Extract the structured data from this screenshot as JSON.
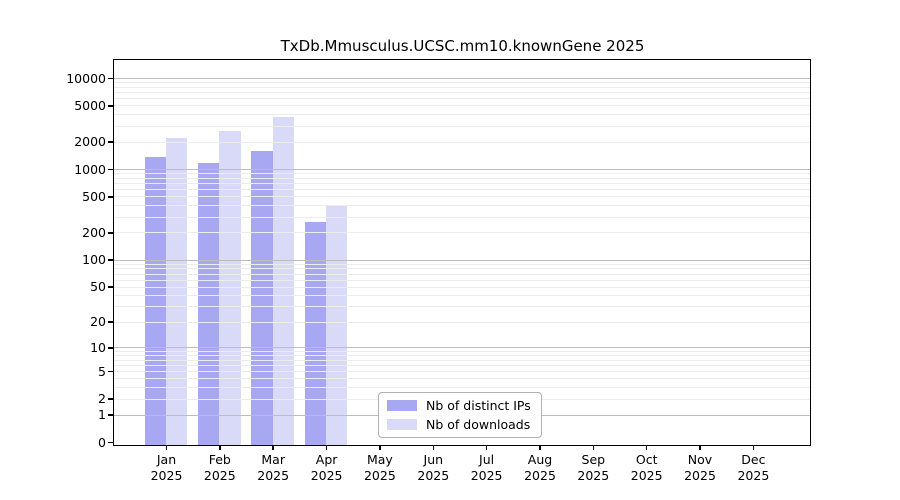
{
  "chart_data": {
    "type": "bar",
    "title": "TxDb.Mmusculus.UCSC.mm10.knownGene 2025",
    "categories": [
      "Jan 2025",
      "Feb 2025",
      "Mar 2025",
      "Apr 2025",
      "May 2025",
      "Jun 2025",
      "Jul 2025",
      "Aug 2025",
      "Sep 2025",
      "Oct 2025",
      "Nov 2025",
      "Dec 2025"
    ],
    "series": [
      {
        "name": "Nb of distinct IPs",
        "color": "#a7a7f2",
        "values": [
          1350,
          1170,
          1570,
          260,
          null,
          null,
          null,
          null,
          null,
          null,
          null,
          null
        ]
      },
      {
        "name": "Nb of downloads",
        "color": "#d9d9f8",
        "values": [
          2200,
          2600,
          3680,
          405,
          null,
          null,
          null,
          null,
          null,
          null,
          null,
          null
        ]
      }
    ],
    "xlabel": "",
    "ylabel": "",
    "y_scale": "log1p",
    "y_ticks": [
      0,
      1,
      2,
      5,
      10,
      20,
      50,
      100,
      200,
      500,
      1000,
      2000,
      5000,
      10000
    ],
    "ylim": [
      0,
      16000
    ],
    "grid": true,
    "grid_major_at": [
      1,
      10,
      100,
      1000,
      10000
    ],
    "legend_position": "lower center inside plot"
  },
  "legend": {
    "items": [
      {
        "label": "Nb of distinct IPs",
        "color": "#a7a7f2"
      },
      {
        "label": "Nb of downloads",
        "color": "#d9d9f8"
      }
    ]
  },
  "colors": {
    "background": "#ffffff",
    "axis": "#000000",
    "grid_minor": "#ececec",
    "grid_major": "#bdbdbd",
    "bar_distinct_ips": "#a7a7f2",
    "bar_downloads": "#d9d9f8"
  }
}
